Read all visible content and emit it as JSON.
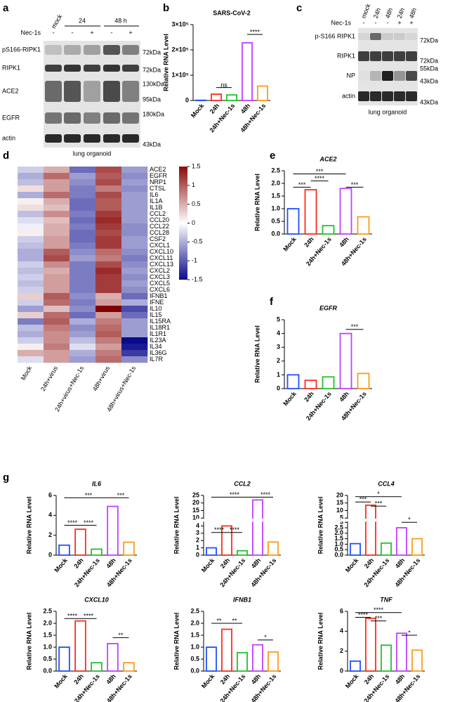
{
  "panel_labels": [
    "a",
    "b",
    "c",
    "d",
    "e",
    "f",
    "g"
  ],
  "blot_a": {
    "columns": [
      "mock",
      "24",
      "48 h"
    ],
    "treatment": "Nec-1s",
    "signs": [
      "-",
      "-",
      "+",
      "-",
      "+"
    ],
    "rows": [
      "pS166-RIPK1",
      "RIPK1",
      "ACE2",
      "EGFR",
      "actin"
    ],
    "markers": [
      "72kDa",
      "72kDa",
      "130kDa",
      "95kDa",
      "180kDa",
      "43kDa"
    ],
    "footer": "lung organoid"
  },
  "blot_c": {
    "columns": [
      "mock",
      "24h",
      "48h",
      "24h",
      "48h"
    ],
    "treatment": "Nec-1s",
    "signs": [
      "-",
      "-",
      "-",
      "+",
      "+"
    ],
    "rows": [
      "p-S166 RIPK1",
      "RIPK1",
      "NP",
      "actin"
    ],
    "markers": [
      "72kDa",
      "72kDa",
      "55kDa",
      "43kDa",
      "43kDa"
    ],
    "footer": "lung organoid"
  },
  "chart_data": [
    {
      "type": "bar",
      "title": "SARS-CoV-2",
      "ylabel": "Relative RNA Level",
      "categories": [
        "Mock",
        "24h",
        "24h+Nec-1s",
        "48h",
        "48h+Nec-1s"
      ],
      "values": [
        1000,
        25000,
        22000,
        228000,
        57000
      ],
      "colors": [
        "#1f4fff",
        "#ff2a1a",
        "#22c22a",
        "#c040ff",
        "#ff9a1a"
      ],
      "ylim": [
        0,
        300000
      ],
      "yticks": [
        0,
        {
          "value": 100000,
          "label": "1×10⁵"
        },
        {
          "value": 200000,
          "label": "2×10⁵"
        },
        {
          "value": 300000,
          "label": "3×10⁵"
        }
      ],
      "annotations": [
        "ns",
        "****"
      ]
    },
    {
      "type": "heatmap",
      "rows": [
        "ACE2",
        "EGFR",
        "NRP1",
        "CTSL",
        "IL6",
        "IL1A",
        "IL1B",
        "CCL2",
        "CCL20",
        "CCL22",
        "CCL28",
        "CSF2",
        "CXCL1",
        "CXCL10",
        "CXCL11",
        "CXCL13",
        "CXCL2",
        "CXCL3",
        "CXCL5",
        "CXCL6",
        "IFNB1",
        "IFNE",
        "IL10",
        "IL15",
        "IL15RA",
        "IL18R1",
        "IL1R1",
        "IL23A",
        "IL34",
        "IL36G",
        "IL7R"
      ],
      "columns": [
        "Mock",
        "24h+virus",
        "24h+virus+Nec-1s",
        "48h+virus",
        "48h+virus+Nec-1s"
      ],
      "values": [
        [
          -0.3,
          0.5,
          -0.9,
          1.1,
          -0.6
        ],
        [
          -0.5,
          0.9,
          -0.6,
          1.0,
          -0.7
        ],
        [
          -0.4,
          0.6,
          -0.7,
          1.1,
          -0.6
        ],
        [
          0.2,
          0.6,
          -0.8,
          0.8,
          -0.7
        ],
        [
          -0.5,
          0.9,
          -0.8,
          1.1,
          -0.6
        ],
        [
          0.1,
          0.5,
          -0.9,
          1.0,
          -0.6
        ],
        [
          0.2,
          0.4,
          -0.9,
          1.0,
          -0.6
        ],
        [
          -0.4,
          0.7,
          -0.8,
          1.2,
          -0.6
        ],
        [
          -0.2,
          0.4,
          -0.9,
          1.3,
          -0.6
        ],
        [
          -0.1,
          0.5,
          -0.8,
          1.2,
          -0.7
        ],
        [
          0.1,
          0.5,
          -0.9,
          1.1,
          -0.7
        ],
        [
          -0.3,
          0.6,
          -0.9,
          1.2,
          -0.6
        ],
        [
          -0.4,
          0.6,
          -0.8,
          1.2,
          -0.6
        ],
        [
          -0.5,
          1.0,
          -0.7,
          0.9,
          -0.7
        ],
        [
          -0.5,
          1.1,
          -0.6,
          0.8,
          -0.8
        ],
        [
          -0.3,
          0.7,
          -0.8,
          1.1,
          -0.7
        ],
        [
          -0.4,
          0.5,
          -0.8,
          1.3,
          -0.6
        ],
        [
          -0.3,
          0.6,
          -0.8,
          1.2,
          -0.7
        ],
        [
          -0.4,
          0.6,
          -0.8,
          1.2,
          -0.6
        ],
        [
          -0.3,
          0.6,
          -0.8,
          1.2,
          -0.7
        ],
        [
          0.3,
          1.0,
          -0.7,
          0.5,
          -0.9
        ],
        [
          -0.3,
          0.9,
          -0.8,
          0.6,
          -0.5
        ],
        [
          -0.6,
          0.4,
          -0.7,
          1.6,
          -1.1
        ],
        [
          0.3,
          0.9,
          -0.9,
          0.6,
          -0.9
        ],
        [
          -0.8,
          1.0,
          -0.5,
          0.8,
          -0.6
        ],
        [
          -0.4,
          0.8,
          -0.7,
          0.9,
          -0.6
        ],
        [
          -0.5,
          0.7,
          -0.6,
          1.0,
          -0.6
        ],
        [
          -0.3,
          0.7,
          -0.4,
          0.8,
          -1.5
        ],
        [
          0.1,
          0.8,
          -0.2,
          0.6,
          -1.4
        ],
        [
          0.5,
          0.6,
          -0.5,
          0.8,
          -1.2
        ],
        [
          -0.2,
          0.6,
          -0.6,
          0.9,
          -0.7
        ]
      ],
      "zlim": [
        -1.5,
        1.5
      ],
      "colorbar_ticks": [
        1.5,
        1,
        0.5,
        0,
        -0.5,
        -1,
        -1.5
      ],
      "colorscale": [
        "#0a0a8c",
        "#ffffff",
        "#8b0a0a"
      ]
    },
    {
      "type": "bar",
      "title": "ACE2",
      "ylabel": "Relative RNA Level",
      "categories": [
        "Mock",
        "24h",
        "24h+Nec-1s",
        "48h",
        "48h+Nec-1s"
      ],
      "values": [
        1.0,
        1.75,
        0.33,
        1.8,
        0.68
      ],
      "colors": [
        "#1f4fff",
        "#ff2a1a",
        "#22c22a",
        "#c040ff",
        "#ff9a1a"
      ],
      "ylim": [
        0,
        2.5
      ],
      "yticks": [
        {
          "value": 0,
          "label": "0.0"
        },
        0.5,
        {
          "value": 1,
          "label": "1.0"
        },
        1.5,
        {
          "value": 2,
          "label": "2.0"
        },
        2.5
      ],
      "annotations": [
        "***",
        "***",
        "****",
        "***"
      ]
    },
    {
      "type": "bar",
      "title": "EGFR",
      "ylabel": "Relative RNA Level",
      "categories": [
        "Mock",
        "24h",
        "24h+Nec-1s",
        "48h",
        "48h+Nec-1s"
      ],
      "values": [
        1.0,
        0.6,
        0.85,
        4.0,
        1.1
      ],
      "colors": [
        "#1f4fff",
        "#ff2a1a",
        "#22c22a",
        "#c040ff",
        "#ff9a1a"
      ],
      "ylim": [
        0,
        5
      ],
      "yticks": [
        0,
        1,
        2,
        3,
        4,
        5
      ],
      "annotations": [
        "***"
      ]
    },
    {
      "type": "bar",
      "title": "IL6",
      "ylabel": "Relative RNA Level",
      "categories": [
        "Mock",
        "24h",
        "24h+Nec-1s",
        "48h",
        "48h+Nec-1s"
      ],
      "values": [
        1.0,
        2.6,
        0.6,
        4.9,
        1.3
      ],
      "colors": [
        "#1f4fff",
        "#ff2a1a",
        "#22c22a",
        "#c040ff",
        "#ff9a1a"
      ],
      "ylim": [
        0,
        6
      ],
      "yticks": [
        0,
        2,
        4,
        6
      ],
      "annotations": [
        "***",
        "***",
        "****",
        "****"
      ]
    },
    {
      "type": "bar",
      "title": "CCL2",
      "ylabel": "Relative RNA Level",
      "categories": [
        "Mock",
        "24h",
        "24h+Nec-1s",
        "48h",
        "48h+Nec-1s"
      ],
      "values": [
        1.0,
        4.0,
        0.6,
        22,
        1.8
      ],
      "colors": [
        "#1f4fff",
        "#ff2a1a",
        "#22c22a",
        "#c040ff",
        "#ff9a1a"
      ],
      "ylim": [
        0,
        25
      ],
      "ybreak": [
        4.5,
        10
      ],
      "yticks": [
        0,
        1,
        2,
        3,
        4,
        10,
        15,
        20,
        25
      ],
      "annotations": [
        "****",
        "****",
        "****",
        "****"
      ]
    },
    {
      "type": "bar",
      "title": "CCL4",
      "ylabel": "Relative RNA Level",
      "categories": [
        "Mock",
        "24h",
        "24h+Nec-1s",
        "48h",
        "48h+Nec-1s"
      ],
      "values": [
        1.05,
        13.5,
        1.1,
        2.5,
        1.5
      ],
      "colors": [
        "#1f4fff",
        "#ff2a1a",
        "#22c22a",
        "#c040ff",
        "#ff9a1a"
      ],
      "ylim": [
        0,
        20
      ],
      "ybreak": [
        3,
        5
      ],
      "yticks": [
        {
          "value": 0,
          "label": "0.0"
        },
        0.5,
        {
          "value": 1,
          "label": "1.0"
        },
        1.5,
        {
          "value": 2,
          "label": "2.0"
        },
        2.5,
        3,
        5,
        10,
        15,
        20
      ],
      "annotations": [
        "***",
        "*",
        "***",
        "*"
      ]
    },
    {
      "type": "bar",
      "title": "CXCL10",
      "ylabel": "Relative RNA Level",
      "categories": [
        "Mock",
        "24h",
        "24h+Nec-1s",
        "48h",
        "48h+Nec-1s"
      ],
      "values": [
        1.0,
        2.1,
        0.35,
        1.15,
        0.35
      ],
      "colors": [
        "#1f4fff",
        "#ff2a1a",
        "#22c22a",
        "#c040ff",
        "#ff9a1a"
      ],
      "ylim": [
        0,
        2.5
      ],
      "yticks": [
        {
          "value": 0,
          "label": "0.0"
        },
        0.5,
        {
          "value": 1,
          "label": "1.0"
        },
        1.5,
        {
          "value": 2,
          "label": "2.0"
        },
        2.5
      ],
      "annotations": [
        "****",
        "****",
        "**"
      ]
    },
    {
      "type": "bar",
      "title": "IFNB1",
      "ylabel": "Relative RNA Level",
      "categories": [
        "Mock",
        "24h",
        "24h+Nec-1s",
        "48h",
        "48h+Nec-1s"
      ],
      "values": [
        1.0,
        1.75,
        0.77,
        1.1,
        0.8
      ],
      "colors": [
        "#1f4fff",
        "#ff2a1a",
        "#22c22a",
        "#c040ff",
        "#ff9a1a"
      ],
      "ylim": [
        0,
        2.5
      ],
      "yticks": [
        {
          "value": 0,
          "label": "0.0"
        },
        0.5,
        {
          "value": 1,
          "label": "1.0"
        },
        1.5,
        {
          "value": 2,
          "label": "2.0"
        },
        2.5
      ],
      "annotations": [
        "**",
        "**",
        "*"
      ]
    },
    {
      "type": "bar",
      "title": "TNF",
      "ylabel": "Relative RNA Level",
      "categories": [
        "Mock",
        "24h",
        "24h+Nec-1s",
        "48h",
        "48h+Nec-1s"
      ],
      "values": [
        1.0,
        5.3,
        2.6,
        3.8,
        2.1
      ],
      "colors": [
        "#1f4fff",
        "#ff2a1a",
        "#22c22a",
        "#c040ff",
        "#ff9a1a"
      ],
      "ylim": [
        0,
        6
      ],
      "yticks": [
        0,
        2,
        4,
        6
      ],
      "annotations": [
        "****",
        "****",
        "***",
        "*"
      ]
    }
  ]
}
